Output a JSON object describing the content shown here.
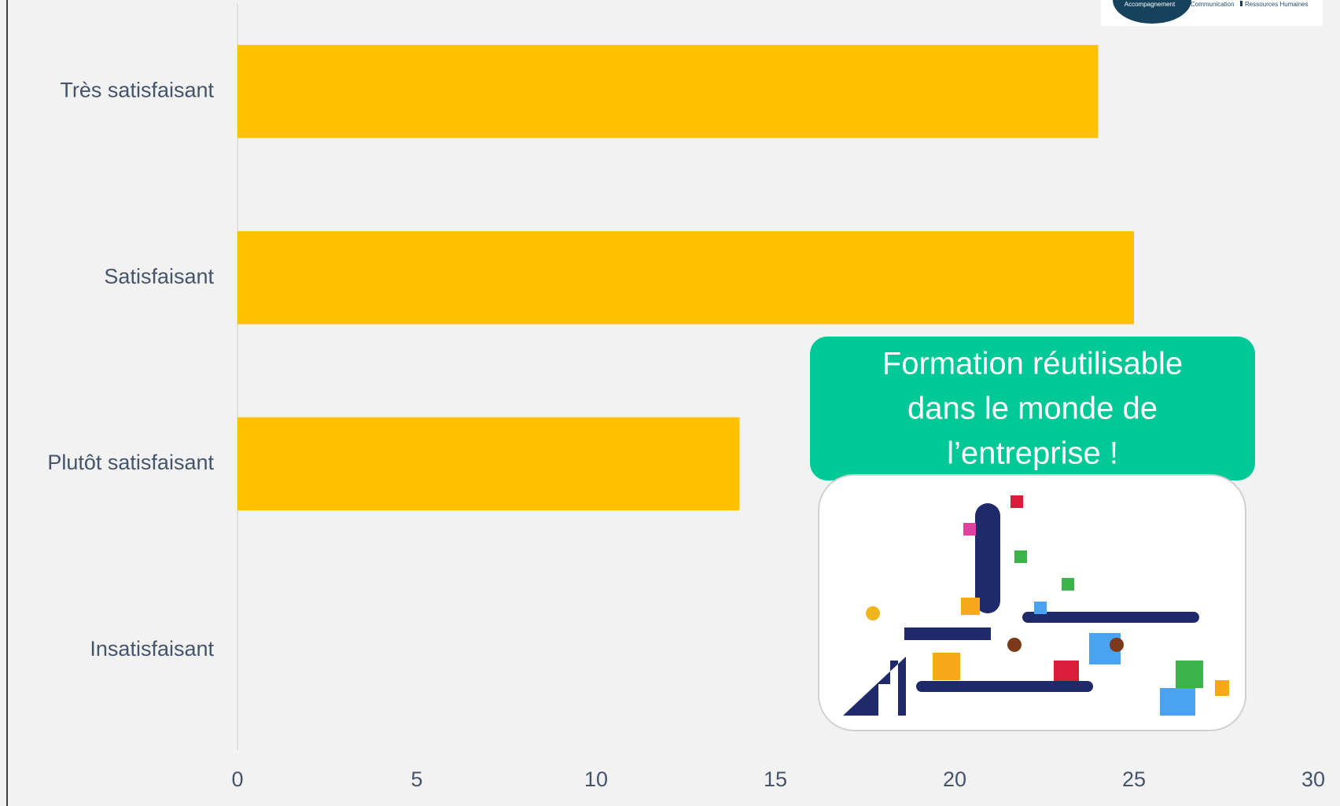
{
  "chart_data": {
    "type": "bar",
    "orientation": "horizontal",
    "categories": [
      "Très satisfaisant",
      "Satisfaisant",
      "Plutôt satisfaisant",
      "Insatisfaisant"
    ],
    "values": [
      24,
      25,
      14,
      0
    ],
    "color": "#ffc000",
    "xlim": [
      0,
      30
    ],
    "xticks": [
      0,
      5,
      10,
      15,
      20,
      25,
      30
    ],
    "grid": false,
    "annotation": [
      "Formation réutilisable",
      "dans le monde de",
      "l’entreprise !"
    ]
  },
  "logo": {
    "texts": [
      "Accompagnement",
      "Communication",
      "Ressources Humaines"
    ]
  }
}
